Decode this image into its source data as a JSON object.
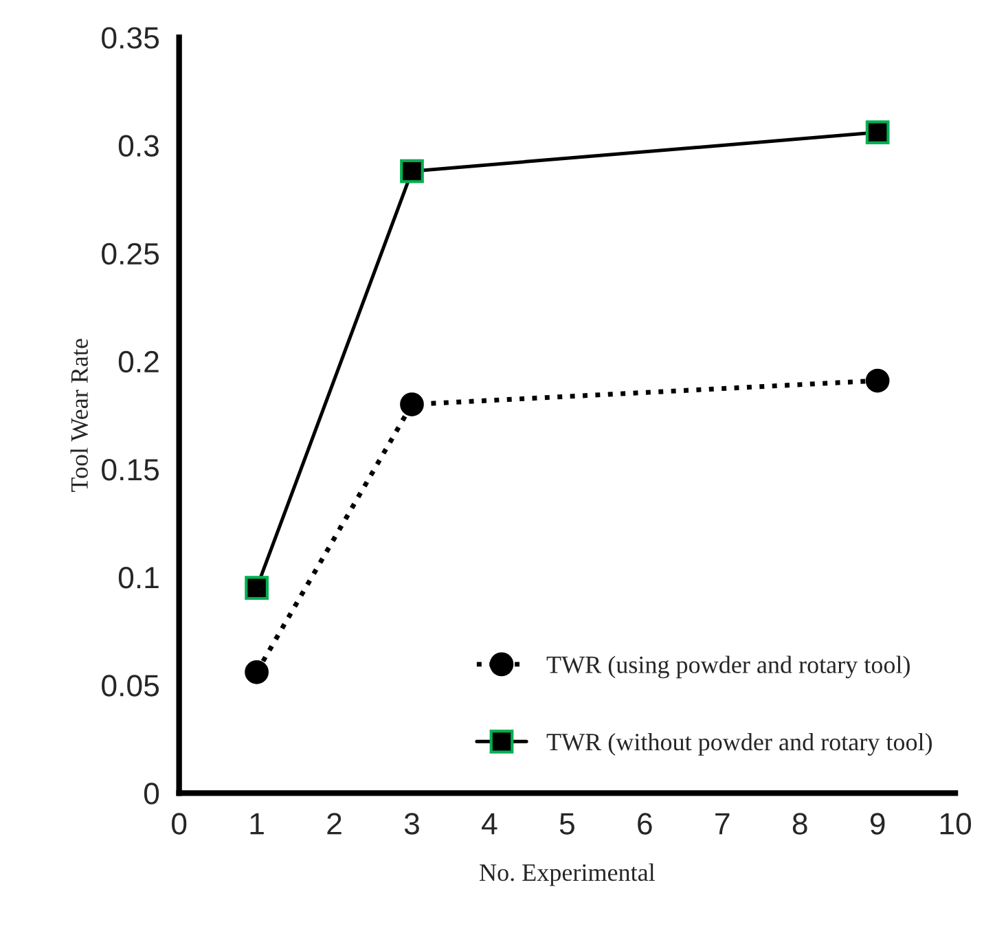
{
  "chart_data": {
    "type": "line",
    "xlabel": "No. Experimental",
    "ylabel": "Tool Wear Rate",
    "x": [
      1,
      3,
      9
    ],
    "series": [
      {
        "name": "TWR (using powder and rotary tool)",
        "color": "#000000",
        "values": [
          0.056,
          0.18,
          0.191
        ],
        "marker": "circle",
        "line_style": "dotted"
      },
      {
        "name": "TWR (without powder and rotary tool)",
        "color": "#000000",
        "values": [
          0.095,
          0.288,
          0.306
        ],
        "marker": "square",
        "line_style": "solid"
      }
    ],
    "xlim": [
      0,
      10
    ],
    "xticks": [
      0,
      1,
      2,
      3,
      4,
      5,
      6,
      7,
      8,
      9,
      10
    ],
    "ylim": [
      0,
      0.35
    ],
    "yticks": [
      0,
      0.05,
      0.1,
      0.15,
      0.2,
      0.25,
      0.3,
      0.35
    ],
    "grid": false,
    "legend": "bottom right"
  }
}
